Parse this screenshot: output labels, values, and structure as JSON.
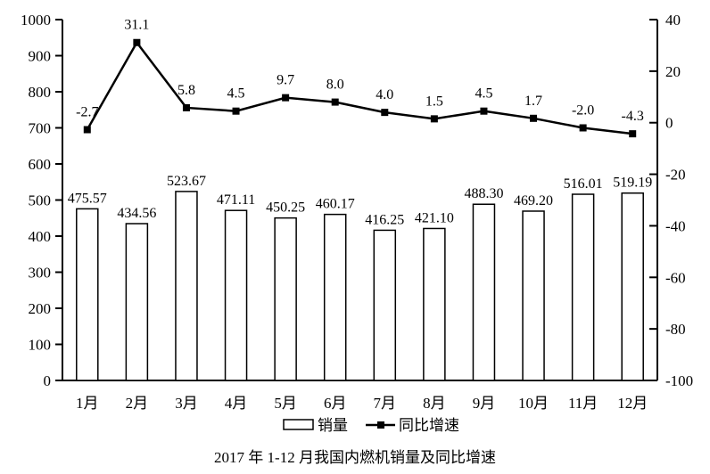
{
  "chart_data": {
    "type": "bar+line",
    "title": "2017 年 1-12 月我国内燃机销量及同比增速",
    "categories": [
      "1月",
      "2月",
      "3月",
      "4月",
      "5月",
      "6月",
      "7月",
      "8月",
      "9月",
      "10月",
      "11月",
      "12月"
    ],
    "series": [
      {
        "name": "销量",
        "type": "bar",
        "axis": "left",
        "decimals": 2,
        "values": [
          475.57,
          434.56,
          523.67,
          471.11,
          450.25,
          460.17,
          416.25,
          421.1,
          488.3,
          469.2,
          516.01,
          519.19
        ]
      },
      {
        "name": "同比增速",
        "type": "line",
        "axis": "right",
        "decimals": 1,
        "values": [
          -2.7,
          31.1,
          5.8,
          4.5,
          9.7,
          8.0,
          4.0,
          1.5,
          4.5,
          1.7,
          -2.0,
          -4.3
        ]
      }
    ],
    "left_axis": {
      "min": 0,
      "max": 1000,
      "step": 100,
      "ticks": [
        1000,
        900,
        800,
        700,
        600,
        500,
        400,
        300,
        200,
        100,
        0
      ]
    },
    "right_axis": {
      "min": -100,
      "max": 40,
      "step": 20,
      "ticks": [
        40,
        20,
        0,
        -20,
        -40,
        -60,
        -80,
        -100
      ]
    },
    "legend": {
      "position": "bottom",
      "items": [
        "销量",
        "同比增速"
      ]
    },
    "grid": false,
    "colors": {
      "background": "#ffffff",
      "bar_fill": "#ffffff",
      "bar_stroke": "#000000",
      "line": "#000000",
      "marker": "#000000",
      "text": "#000000"
    }
  }
}
